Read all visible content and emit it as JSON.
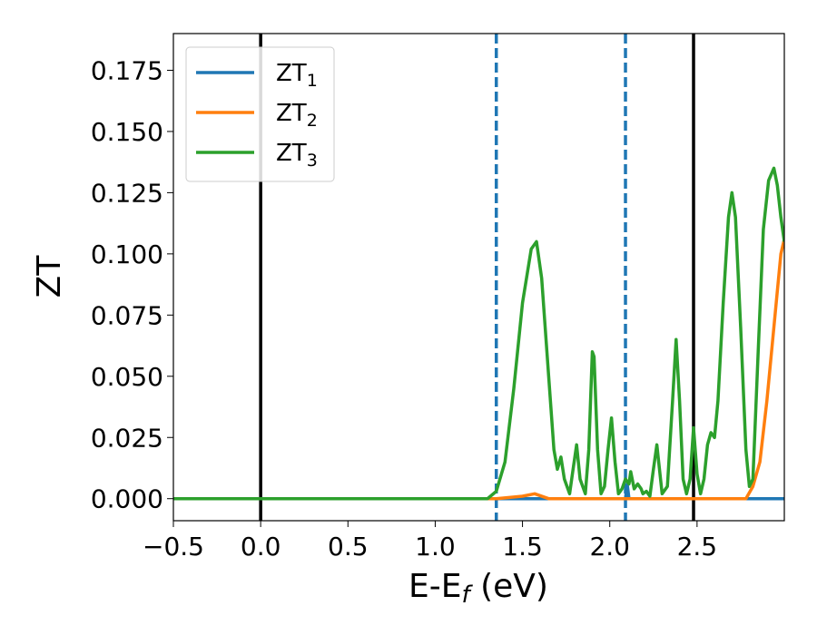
{
  "chart_data": {
    "type": "line",
    "xlabel": "E-E",
    "xlabel_sub": "f",
    "xlabel_unit": " (eV)",
    "ylabel": "ZT",
    "xlim": [
      -0.5,
      3.0
    ],
    "ylim": [
      -0.009,
      0.19
    ],
    "xticks": [
      -0.5,
      0.0,
      0.5,
      1.0,
      1.5,
      2.0,
      2.5
    ],
    "xtick_labels": [
      "−0.5",
      "0.0",
      "0.5",
      "1.0",
      "1.5",
      "2.0",
      "2.5"
    ],
    "yticks": [
      0.0,
      0.025,
      0.05,
      0.075,
      0.1,
      0.125,
      0.15,
      0.175
    ],
    "ytick_labels": [
      "0.000",
      "0.025",
      "0.050",
      "0.075",
      "0.100",
      "0.125",
      "0.150",
      "0.175"
    ],
    "grid": false,
    "legend_position": "top-left",
    "vertical_lines": [
      {
        "x": 0.0,
        "style": "solid",
        "color": "#000000"
      },
      {
        "x": 2.48,
        "style": "solid",
        "color": "#000000"
      },
      {
        "x": 1.35,
        "style": "dashed",
        "color": "#1f77b4"
      },
      {
        "x": 2.09,
        "style": "dashed",
        "color": "#1f77b4"
      }
    ],
    "series": [
      {
        "name": "ZT",
        "name_sub": "1",
        "color": "#1f77b4",
        "x": [
          -0.5,
          2.09,
          2.1,
          2.11,
          3.0
        ],
        "y": [
          0.0,
          0.0,
          0.006,
          0.0,
          0.0
        ]
      },
      {
        "name": "ZT",
        "name_sub": "2",
        "color": "#ff7f0e",
        "x": [
          -0.5,
          1.35,
          1.5,
          1.57,
          1.65,
          2.78,
          2.82,
          2.86,
          2.9,
          2.94,
          2.98,
          3.0
        ],
        "y": [
          0.0,
          0.0,
          0.001,
          0.002,
          0.0,
          0.0,
          0.005,
          0.015,
          0.04,
          0.07,
          0.1,
          0.106
        ]
      },
      {
        "name": "ZT",
        "name_sub": "3",
        "color": "#2ca02c",
        "x": [
          -0.5,
          1.3,
          1.35,
          1.4,
          1.45,
          1.5,
          1.55,
          1.58,
          1.61,
          1.65,
          1.68,
          1.7,
          1.72,
          1.74,
          1.77,
          1.79,
          1.81,
          1.83,
          1.86,
          1.88,
          1.9,
          1.91,
          1.93,
          1.95,
          1.97,
          1.99,
          2.01,
          2.03,
          2.05,
          2.07,
          2.09,
          2.11,
          2.12,
          2.14,
          2.16,
          2.18,
          2.19,
          2.21,
          2.23,
          2.25,
          2.27,
          2.28,
          2.3,
          2.33,
          2.36,
          2.38,
          2.4,
          2.42,
          2.44,
          2.46,
          2.48,
          2.5,
          2.52,
          2.54,
          2.56,
          2.58,
          2.6,
          2.62,
          2.65,
          2.68,
          2.7,
          2.72,
          2.75,
          2.78,
          2.8,
          2.82,
          2.85,
          2.88,
          2.91,
          2.94,
          2.96,
          2.98,
          3.0
        ],
        "y": [
          0.0,
          0.0,
          0.003,
          0.015,
          0.045,
          0.08,
          0.102,
          0.105,
          0.09,
          0.05,
          0.02,
          0.012,
          0.017,
          0.008,
          0.002,
          0.012,
          0.022,
          0.008,
          0.002,
          0.02,
          0.06,
          0.058,
          0.02,
          0.002,
          0.005,
          0.02,
          0.033,
          0.015,
          0.002,
          0.004,
          0.008,
          0.006,
          0.011,
          0.004,
          0.006,
          0.004,
          0.002,
          0.003,
          0.001,
          0.012,
          0.022,
          0.015,
          0.002,
          0.005,
          0.04,
          0.065,
          0.04,
          0.008,
          0.002,
          0.008,
          0.029,
          0.01,
          0.002,
          0.008,
          0.022,
          0.027,
          0.025,
          0.04,
          0.08,
          0.115,
          0.125,
          0.115,
          0.07,
          0.02,
          0.005,
          0.008,
          0.06,
          0.11,
          0.13,
          0.135,
          0.128,
          0.115,
          0.105
        ]
      }
    ]
  }
}
